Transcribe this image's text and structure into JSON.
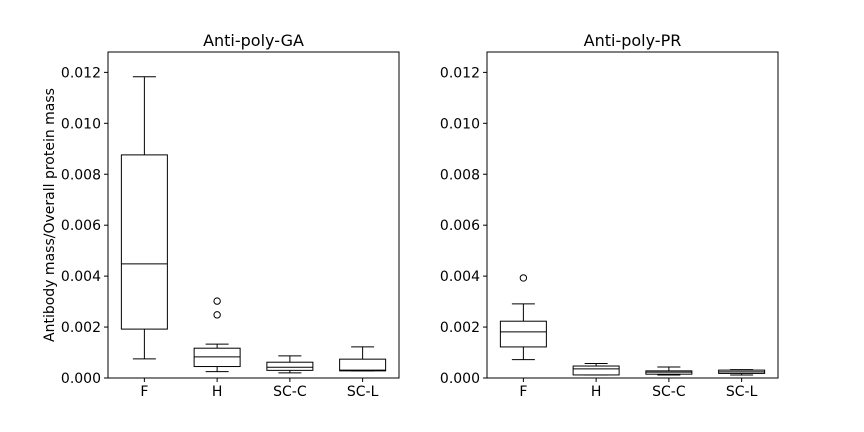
{
  "chart_data": [
    {
      "type": "box",
      "title": "Anti-poly-GA",
      "ylabel": "Antibody mass/Overall protein mass",
      "xlabel": "",
      "ylim": [
        0,
        0.0128
      ],
      "yticks": [
        "0.000",
        "0.002",
        "0.004",
        "0.006",
        "0.008",
        "0.010",
        "0.012"
      ],
      "grid": false,
      "categories": [
        "F",
        "H",
        "SC-C",
        "SC-L"
      ],
      "boxes": [
        {
          "category": "F",
          "whisker_low": 0.00075,
          "q1": 0.00192,
          "median": 0.00448,
          "q3": 0.00876,
          "whisker_high": 0.01183,
          "fliers": []
        },
        {
          "category": "H",
          "whisker_low": 0.00025,
          "q1": 0.00045,
          "median": 0.00083,
          "q3": 0.00117,
          "whisker_high": 0.00133,
          "fliers": [
            0.00248,
            0.00302
          ]
        },
        {
          "category": "SC-C",
          "whisker_low": 0.0002,
          "q1": 0.0003,
          "median": 0.00042,
          "q3": 0.00062,
          "whisker_high": 0.00087,
          "fliers": []
        },
        {
          "category": "SC-L",
          "whisker_low": 0.00028,
          "q1": 0.00028,
          "median": 0.00031,
          "q3": 0.00074,
          "whisker_high": 0.00122,
          "fliers": []
        }
      ]
    },
    {
      "type": "box",
      "title": "Anti-poly-PR",
      "ylabel": "",
      "xlabel": "",
      "ylim": [
        0,
        0.0128
      ],
      "yticks": [
        "0.000",
        "0.002",
        "0.004",
        "0.006",
        "0.008",
        "0.010",
        "0.012"
      ],
      "grid": false,
      "categories": [
        "F",
        "H",
        "SC-C",
        "SC-L"
      ],
      "boxes": [
        {
          "category": "F",
          "whisker_low": 0.00072,
          "q1": 0.00122,
          "median": 0.00181,
          "q3": 0.00223,
          "whisker_high": 0.00291,
          "fliers": [
            0.00393
          ]
        },
        {
          "category": "H",
          "whisker_low": 0.00012,
          "q1": 0.00012,
          "median": 0.00036,
          "q3": 0.00047,
          "whisker_high": 0.00057,
          "fliers": []
        },
        {
          "category": "SC-C",
          "whisker_low": 0.00012,
          "q1": 0.00015,
          "median": 0.00023,
          "q3": 0.00028,
          "whisker_high": 0.00043,
          "fliers": []
        },
        {
          "category": "SC-L",
          "whisker_low": 0.00012,
          "q1": 0.00018,
          "median": 0.00024,
          "q3": 0.00031,
          "whisker_high": 0.00033,
          "fliers": []
        }
      ]
    }
  ]
}
